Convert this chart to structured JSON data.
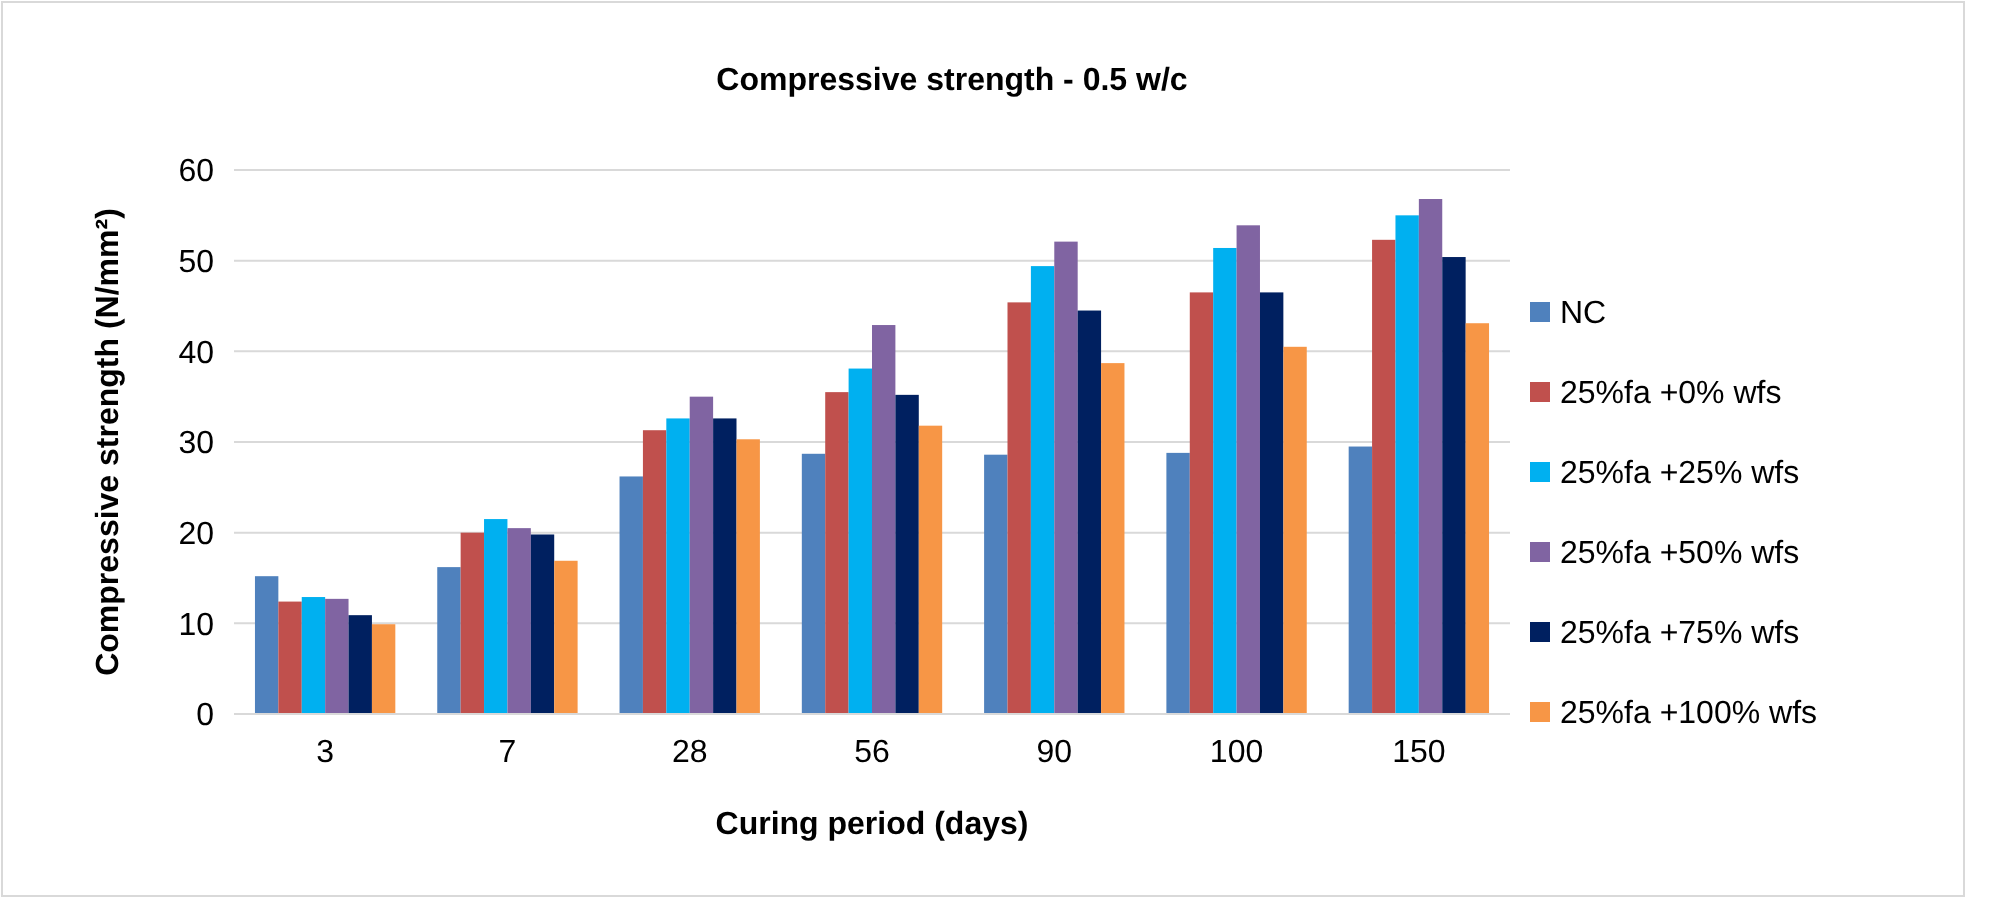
{
  "chart_data": {
    "type": "bar",
    "title": "Compressive strength - 0.5 w/c",
    "xlabel": "Curing period (days)",
    "ylabel": "Compressive strength (N/mm²)",
    "categories": [
      "3",
      "7",
      "28",
      "56",
      "90",
      "100",
      "150"
    ],
    "series": [
      {
        "name": "NC",
        "color": "#4f81bd",
        "values": [
          15.2,
          16.2,
          26.2,
          28.7,
          28.6,
          28.8,
          29.5
        ]
      },
      {
        "name": "25%fa +0% wfs",
        "color": "#c0504d",
        "values": [
          12.4,
          20.0,
          31.3,
          35.5,
          45.4,
          46.5,
          52.3
        ]
      },
      {
        "name": "25%fa +25% wfs",
        "color": "#00b0f0",
        "values": [
          12.9,
          21.5,
          32.6,
          38.1,
          49.4,
          51.4,
          55.0
        ]
      },
      {
        "name": "25%fa +50% wfs",
        "color": "#8064a2",
        "values": [
          12.7,
          20.5,
          35.0,
          42.9,
          52.1,
          53.9,
          56.8
        ]
      },
      {
        "name": "25%fa +75% wfs",
        "color": "#002060",
        "values": [
          10.9,
          19.8,
          32.6,
          35.2,
          44.5,
          46.5,
          50.4
        ]
      },
      {
        "name": "25%fa +100% wfs",
        "color": "#f79646",
        "values": [
          9.9,
          16.9,
          30.3,
          31.8,
          38.7,
          40.5,
          43.1
        ]
      }
    ],
    "ylim": [
      0,
      60
    ],
    "yticks": [
      0,
      10,
      20,
      30,
      40,
      50,
      60
    ],
    "grid": "y",
    "legend": "right"
  }
}
